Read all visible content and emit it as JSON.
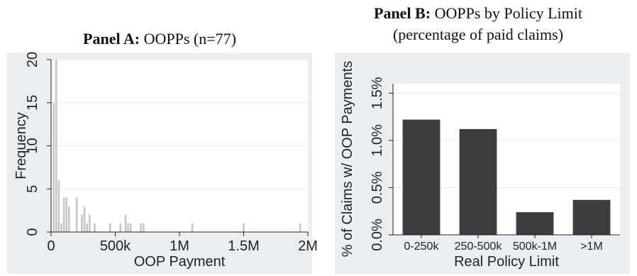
{
  "chart_data": [
    {
      "type": "bar",
      "panel_label": "Panel A:",
      "panel_title": "OOPPs (n=77)",
      "xlabel": "OOP Payment",
      "ylabel": "Frequency",
      "xlim": [
        0,
        2000000
      ],
      "ylim": [
        0,
        20
      ],
      "xticks": [
        0,
        500000,
        1000000,
        1500000,
        2000000
      ],
      "xtick_labels": [
        "0",
        "500k",
        "1M",
        "1.5M",
        "2M"
      ],
      "yticks": [
        0,
        5,
        10,
        15,
        20
      ],
      "ytick_labels": [
        "0",
        "5",
        "10",
        "15",
        "20"
      ],
      "grid": true,
      "bar_color": "#c6c6c6",
      "bin_width": 20000,
      "bins": [
        {
          "x": 20000,
          "count": 15
        },
        {
          "x": 40000,
          "count": 20
        },
        {
          "x": 60000,
          "count": 6
        },
        {
          "x": 80000,
          "count": 1
        },
        {
          "x": 100000,
          "count": 4
        },
        {
          "x": 120000,
          "count": 4
        },
        {
          "x": 140000,
          "count": 3
        },
        {
          "x": 200000,
          "count": 4
        },
        {
          "x": 240000,
          "count": 2
        },
        {
          "x": 260000,
          "count": 3
        },
        {
          "x": 280000,
          "count": 1
        },
        {
          "x": 300000,
          "count": 2
        },
        {
          "x": 340000,
          "count": 1
        },
        {
          "x": 460000,
          "count": 1
        },
        {
          "x": 540000,
          "count": 1
        },
        {
          "x": 580000,
          "count": 2
        },
        {
          "x": 600000,
          "count": 1
        },
        {
          "x": 620000,
          "count": 1
        },
        {
          "x": 700000,
          "count": 1
        },
        {
          "x": 720000,
          "count": 1
        },
        {
          "x": 1100000,
          "count": 1
        },
        {
          "x": 1500000,
          "count": 1
        },
        {
          "x": 1940000,
          "count": 1
        }
      ]
    },
    {
      "type": "bar",
      "panel_label": "Panel B:",
      "panel_title": "OOPPs by Policy Limit (percentage of paid claims)",
      "panel_title_lines": [
        "OOPPs by Policy Limit",
        "(percentage of paid claims)"
      ],
      "xlabel": "Real Policy Limit",
      "ylabel": "% of Claims w/ OOP Payments",
      "categories": [
        "0-250k",
        "250-500k",
        "500k-1M",
        ">1M"
      ],
      "values": [
        1.22,
        1.12,
        0.24,
        0.37
      ],
      "ylim": [
        0,
        1.6
      ],
      "yticks": [
        0,
        0.5,
        1.0,
        1.5
      ],
      "ytick_labels": [
        "0.0%",
        "0.5%",
        "1.0%",
        "1.5%"
      ],
      "grid": true,
      "bar_color": "#3c3c3c"
    }
  ]
}
